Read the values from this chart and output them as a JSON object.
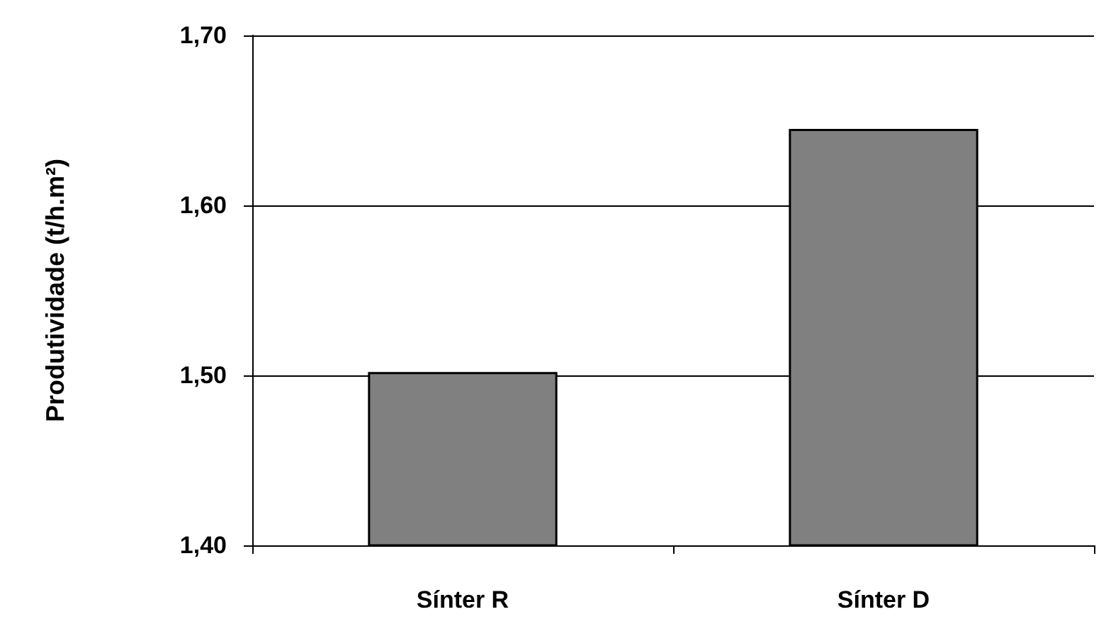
{
  "chart_data": {
    "type": "bar",
    "ylabel": "Produtividade (t/h.m²)",
    "categories": [
      "Sínter R",
      "Sínter D"
    ],
    "series": [
      {
        "color": "#808080",
        "values": [
          1.502,
          1.645
        ]
      }
    ],
    "ylim": [
      1.4,
      1.7
    ],
    "yticks": [
      {
        "value": 1.4,
        "label": "1,40"
      },
      {
        "value": 1.5,
        "label": "1,50"
      },
      {
        "value": 1.6,
        "label": "1,60"
      },
      {
        "value": 1.7,
        "label": "1,70"
      }
    ],
    "grid": "y"
  }
}
